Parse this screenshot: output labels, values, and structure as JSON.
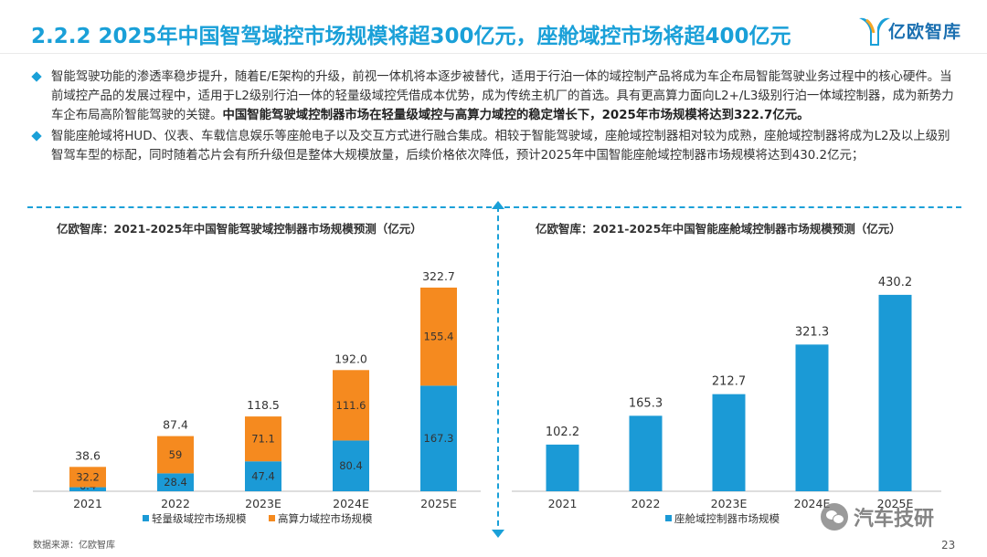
{
  "header": {
    "title": "2.2.2 2025年中国智驾域控市场规模将超300亿元，座舱域控市场将超400亿元",
    "logo_text": "亿欧智库",
    "accent_color": "#1aa0d8"
  },
  "bullets": [
    {
      "text": "智能驾驶功能的渗透率稳步提升，随着E/E架构的升级，前视一体机将本逐步被替代，适用于行泊一体的域控制产品将成为车企布局智能驾驶业务过程中的核心硬件。当前域控产品的发展过程中，适用于L2级别行泊一体的轻量级域控凭借成本优势，成为传统主机厂的首选。具有更高算力面向L2+/L3级别行泊一体域控制器，成为新势力车企布局高阶智能驾驶的关键。",
      "bold": "中国智能驾驶域控制器市场在轻量级域控与高算力域控的稳定增长下，2025年市场规模将达到322.7亿元。"
    },
    {
      "text": "智能座舱域将HUD、仪表、车载信息娱乐等座舱电子以及交互方式进行融合集成。相较于智能驾驶域，座舱域控制器相对较为成熟，座舱域控制器将成为L2及以上级别智驾车型的标配，同时随着芯片会有所升级但是整体大规模放量，后续价格依次降低，预计2025年中国智能座舱域控制器市场规模将达到430.2亿元；",
      "bold": ""
    }
  ],
  "chart_data": [
    {
      "type": "bar",
      "stacked": true,
      "title": "亿欧智库：2021-2025年中国智能驾驶域控制器市场规模预测（亿元）",
      "categories": [
        "2021",
        "2022",
        "2023E",
        "2024E",
        "2025E"
      ],
      "series": [
        {
          "name": "轻量级域控市场规模",
          "color": "#1b9ad6",
          "values": [
            6.4,
            28.4,
            47.4,
            80.4,
            167.3
          ]
        },
        {
          "name": "高算力域控市场规模",
          "color": "#f58a1f",
          "values": [
            32.2,
            59,
            71.1,
            111.6,
            155.4
          ]
        }
      ],
      "totals": [
        38.6,
        87.4,
        118.5,
        192.0,
        322.7
      ],
      "total_labels": [
        "38.6",
        "87.4",
        "118.5",
        "192.0",
        "322.7"
      ],
      "value_labels": [
        [
          "6.4",
          "28.4",
          "47.4",
          "80.4",
          "167.3"
        ],
        [
          "32.2",
          "59",
          "71.1",
          "111.6",
          "155.4"
        ]
      ],
      "ylim": [
        0,
        340
      ],
      "legend": "bottom"
    },
    {
      "type": "bar",
      "title": "亿欧智库：2021-2025年中国智能座舱域控制器市场规模预测（亿元）",
      "categories": [
        "2021",
        "2022",
        "2023E",
        "2024E",
        "2025E"
      ],
      "series": [
        {
          "name": "座舱域控制器市场规模",
          "color": "#1b9ad6",
          "values": [
            102.2,
            165.3,
            212.7,
            321.3,
            430.2
          ]
        }
      ],
      "value_labels": [
        "102.2",
        "165.3",
        "212.7",
        "321.3",
        "430.2"
      ],
      "ylim": [
        0,
        460
      ],
      "legend": "bottom"
    }
  ],
  "footer": {
    "source": "数据来源：亿欧智库",
    "page_number": "23",
    "watermark": "汽车技研"
  }
}
